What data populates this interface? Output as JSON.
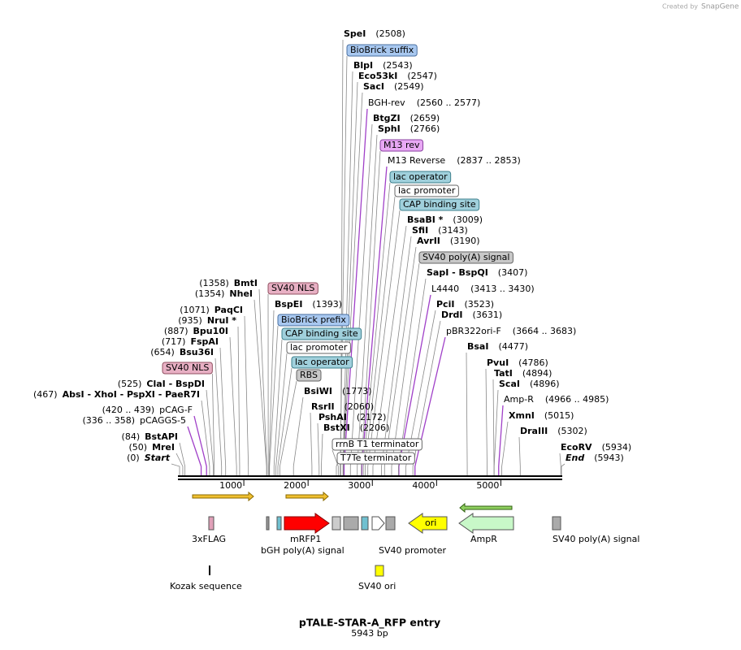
{
  "credit": "Created by",
  "brand": "SnapGene",
  "title": "pTALE-STAR-A_RFP entry",
  "subtitle": "5943 bp",
  "ruler": [
    "1000",
    "2000",
    "3000",
    "4000",
    "5000"
  ],
  "right_labels": [
    {
      "name": "SpeI",
      "pos": "(2508)"
    },
    {
      "label": "BioBrick suffix"
    },
    {
      "name": "BlpI",
      "pos": "(2543)"
    },
    {
      "name": "Eco53kI",
      "pos": "(2547)"
    },
    {
      "name": "SacI",
      "pos": "(2549)"
    },
    {
      "name": "BGH-rev",
      "pos": "(2560 .. 2577)"
    },
    {
      "name": "BtgZI",
      "pos": "(2659)"
    },
    {
      "name": "SphI",
      "pos": "(2766)"
    },
    {
      "label": "M13 rev"
    },
    {
      "name": "M13 Reverse",
      "pos": "(2837 .. 2853)"
    },
    {
      "label": "lac operator"
    },
    {
      "label": "lac promoter"
    },
    {
      "label": "CAP binding site"
    },
    {
      "name": "BsaBI *",
      "pos": "(3009)"
    },
    {
      "name": "SfiI",
      "pos": "(3143)"
    },
    {
      "name": "AvrII",
      "pos": "(3190)"
    },
    {
      "label": "SV40 poly(A) signal"
    },
    {
      "name": "SapI   -  BspQI",
      "pos": "(3407)"
    },
    {
      "name": "L4440",
      "pos": "(3413 .. 3430)"
    },
    {
      "name": "PciI",
      "pos": "(3523)"
    },
    {
      "name": "DrdI",
      "pos": "(3631)"
    },
    {
      "name": "pBR322ori-F",
      "pos": "(3664 .. 3683)"
    },
    {
      "name": "BsaI",
      "pos": "(4477)"
    },
    {
      "name": "PvuI",
      "pos": "(4786)"
    },
    {
      "name": "TatI",
      "pos": "(4894)"
    },
    {
      "name": "ScaI",
      "pos": "(4896)"
    },
    {
      "name": "Amp-R",
      "pos": "(4966 .. 4985)"
    },
    {
      "name": "XmnI",
      "pos": "(5015)"
    },
    {
      "name": "DraIII",
      "pos": "(5302)"
    },
    {
      "name": "EcoRV",
      "pos": "(5934)"
    },
    {
      "name": "End",
      "pos": "(5943)"
    }
  ],
  "middle_labels": [
    {
      "label": "SV40 NLS"
    },
    {
      "name": "BspEI",
      "pos": "(1393)"
    },
    {
      "label": "BioBrick prefix"
    },
    {
      "label": "CAP binding site"
    },
    {
      "label": "lac promoter"
    },
    {
      "label": "lac operator"
    },
    {
      "label": "RBS"
    },
    {
      "name": "BsiWI",
      "pos": "(1773)"
    },
    {
      "name": "RsrII",
      "pos": "(2060)"
    },
    {
      "name": "PshAI",
      "pos": "(2172)"
    },
    {
      "name": "BstXI",
      "pos": "(2206)"
    },
    {
      "label": "rrnB T1 terminator"
    },
    {
      "label": "T7Te terminator"
    }
  ],
  "left_labels": [
    {
      "name": "BmtI",
      "pos": "(1358)"
    },
    {
      "name": "NheI",
      "pos": "(1354)"
    },
    {
      "name": "PaqCI",
      "pos": "(1071)"
    },
    {
      "name": "NruI *",
      "pos": "(935)"
    },
    {
      "name": "Bpu10I",
      "pos": "(887)"
    },
    {
      "name": "FspAI",
      "pos": "(717)"
    },
    {
      "name": "Bsu36I",
      "pos": "(654)"
    },
    {
      "label": "SV40 NLS"
    },
    {
      "name": "ClaI   -  BspDI",
      "pos": "(525)"
    },
    {
      "name": "AbsI   -  XhoI   -  PspXI   -  PaeR7I",
      "pos": "(467)"
    },
    {
      "name": "pCAG-F",
      "pos": "(420 .. 439)"
    },
    {
      "name": "pCAGGS-5",
      "pos": "(336 .. 358)"
    },
    {
      "name": "BstAPI",
      "pos": "(84)"
    },
    {
      "name": "MreI",
      "pos": "(50)"
    },
    {
      "name": "Start",
      "pos": "(0)"
    }
  ],
  "features": [
    {
      "label": "3xFLAG"
    },
    {
      "label": "mRFP1"
    },
    {
      "label": "bGH poly(A) signal"
    },
    {
      "label": "SV40 promoter"
    },
    {
      "label": "ori"
    },
    {
      "label": "AmpR"
    },
    {
      "label": "SV40 poly(A) signal"
    },
    {
      "label": "Kozak sequence"
    },
    {
      "label": "SV40 ori"
    }
  ]
}
